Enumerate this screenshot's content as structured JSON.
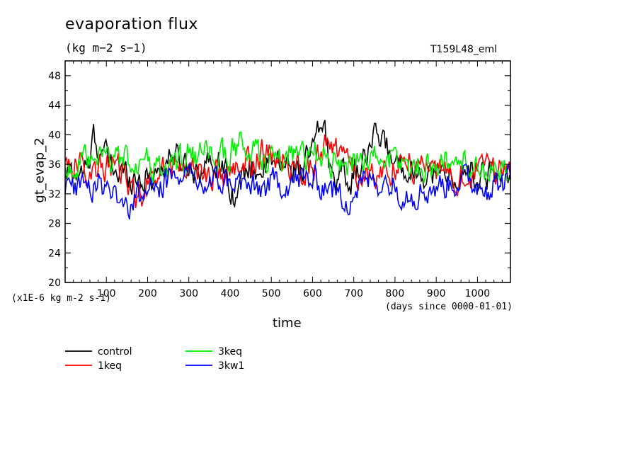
{
  "chart_data": {
    "type": "line",
    "title": "evaporation flux",
    "units": "(kg m−2 s−1)",
    "model_label": "T159L48_eml",
    "ylabel": "gt_evap_2",
    "xlabel": "time",
    "x_units": "(days since 0000-01-01)",
    "y_scale_label": "(x1E-6 kg m-2 s-1)",
    "xlim": [
      0,
      1080
    ],
    "ylim": [
      20,
      50
    ],
    "x_ticks": [
      100,
      200,
      300,
      400,
      500,
      600,
      700,
      800,
      900,
      1000
    ],
    "y_ticks": [
      20,
      24,
      28,
      32,
      36,
      40,
      44,
      48
    ],
    "series": [
      {
        "name": "control",
        "color": "#000000",
        "x": [
          0,
          60,
          65,
          120,
          200,
          260,
          320,
          380,
          415,
          440,
          520,
          580,
          630,
          640,
          700,
          760,
          800,
          860,
          920,
          980,
          1080
        ],
        "values": [
          34.5,
          35.5,
          40.0,
          35.0,
          34.0,
          37.0,
          35.5,
          36.5,
          31.5,
          35.0,
          36.0,
          35.5,
          42.0,
          35.5,
          34.0,
          40.0,
          36.5,
          35.0,
          34.5,
          34.0,
          35.0
        ]
      },
      {
        "name": "1keq",
        "color": "#ff0000",
        "x": [
          0,
          60,
          120,
          175,
          230,
          300,
          360,
          420,
          480,
          540,
          600,
          640,
          700,
          760,
          820,
          880,
          940,
          1000,
          1080
        ],
        "values": [
          36.5,
          35.0,
          36.0,
          31.5,
          35.5,
          36.0,
          34.5,
          35.0,
          37.5,
          36.0,
          35.5,
          39.0,
          35.0,
          34.5,
          36.5,
          35.5,
          34.0,
          35.0,
          35.5
        ]
      },
      {
        "name": "3keq",
        "color": "#00ee00",
        "x": [
          0,
          60,
          120,
          180,
          240,
          300,
          360,
          420,
          480,
          540,
          600,
          660,
          720,
          780,
          840,
          900,
          960,
          1020,
          1080
        ],
        "values": [
          35.5,
          36.0,
          37.0,
          36.5,
          35.0,
          37.5,
          36.5,
          38.5,
          37.0,
          36.0,
          37.5,
          36.0,
          36.5,
          37.0,
          35.5,
          36.0,
          36.5,
          35.0,
          34.0
        ]
      },
      {
        "name": "3kw1",
        "color": "#0000ff",
        "x": [
          0,
          40,
          100,
          160,
          220,
          280,
          340,
          400,
          460,
          520,
          580,
          640,
          680,
          730,
          780,
          840,
          900,
          960,
          1020,
          1080
        ],
        "values": [
          32.0,
          34.0,
          33.0,
          30.5,
          33.5,
          34.0,
          33.0,
          34.0,
          32.5,
          33.5,
          34.0,
          33.0,
          31.0,
          34.0,
          33.5,
          32.0,
          33.0,
          34.0,
          33.0,
          34.0
        ]
      }
    ]
  }
}
